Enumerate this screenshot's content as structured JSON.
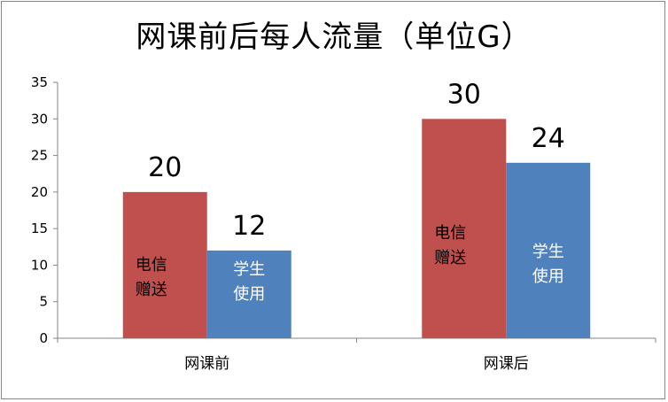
{
  "chart_data": {
    "type": "bar",
    "title": "网课前后每人流量（单位G）",
    "categories": [
      "网课前",
      "网课后"
    ],
    "series": [
      {
        "values": [
          20,
          30
        ],
        "color": "#C0504D",
        "inner_label": [
          "电信",
          "赠送"
        ],
        "inner_label_color": "#000000"
      },
      {
        "values": [
          12,
          24
        ],
        "color": "#4F81BD",
        "inner_label": [
          "学生",
          "使用"
        ],
        "inner_label_color": "#FFFFFF"
      }
    ],
    "data_labels": [
      [
        "20",
        "30"
      ],
      [
        "12",
        "24"
      ]
    ],
    "ylim": [
      0,
      35
    ],
    "yticks": [
      0,
      5,
      10,
      15,
      20,
      25,
      30,
      35
    ],
    "grid": false,
    "legend": "none",
    "xlabel": "",
    "ylabel": ""
  }
}
